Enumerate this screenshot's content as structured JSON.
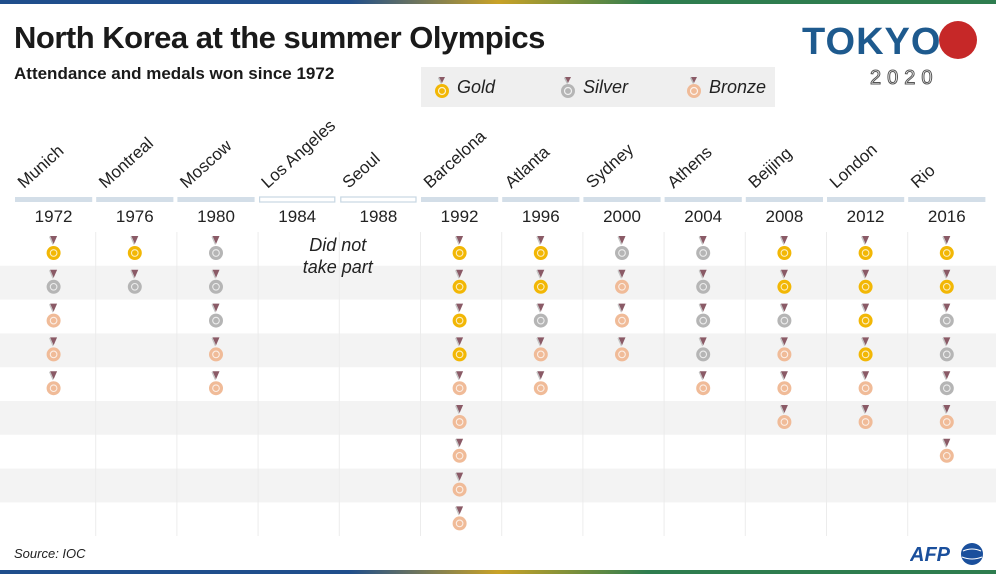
{
  "title": "North Korea at the summer Olympics",
  "subtitle": "Attendance and medals won since 1972",
  "legend": {
    "gold": "Gold",
    "silver": "Silver",
    "bronze": "Bronze"
  },
  "logo": {
    "text": "TOKYO",
    "year": "2020"
  },
  "source": "Source: IOC",
  "agency": "AFP",
  "colors": {
    "gold": "#f2b705",
    "silver": "#b5b5b5",
    "bronze": "#f0bb98",
    "stripe_row": "#f3f3f3",
    "ribbon": "#8a5a66"
  },
  "chart_data": {
    "type": "table",
    "title": "North Korea at the summer Olympics",
    "subtitle": "Attendance and medals won since 1972",
    "absent_note": "Did not take part",
    "absent_note_lines": [
      "Did not",
      "take part"
    ],
    "games": [
      {
        "city": "Munich",
        "year": "1972",
        "gold": 1,
        "silver": 1,
        "bronze": 3
      },
      {
        "city": "Montreal",
        "year": "1976",
        "gold": 1,
        "silver": 1,
        "bronze": 0
      },
      {
        "city": "Moscow",
        "year": "1980",
        "gold": 0,
        "silver": 3,
        "bronze": 2
      },
      {
        "city": "Los Angeles",
        "year": "1984",
        "absent": true
      },
      {
        "city": "Seoul",
        "year": "1988",
        "absent": true
      },
      {
        "city": "Barcelona",
        "year": "1992",
        "gold": 4,
        "silver": 0,
        "bronze": 5
      },
      {
        "city": "Atlanta",
        "year": "1996",
        "gold": 2,
        "silver": 1,
        "bronze": 2
      },
      {
        "city": "Sydney",
        "year": "2000",
        "gold": 0,
        "silver": 1,
        "bronze": 3
      },
      {
        "city": "Athens",
        "year": "2004",
        "gold": 0,
        "silver": 4,
        "bronze": 1
      },
      {
        "city": "Beijing",
        "year": "2008",
        "gold": 2,
        "silver": 1,
        "bronze": 3
      },
      {
        "city": "London",
        "year": "2012",
        "gold": 4,
        "silver": 0,
        "bronze": 2
      },
      {
        "city": "Rio",
        "year": "2016",
        "gold": 2,
        "silver": 3,
        "bronze": 2
      }
    ]
  }
}
